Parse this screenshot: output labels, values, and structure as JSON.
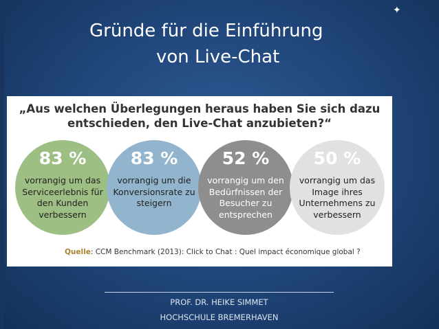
{
  "slide": {
    "title_line1": "Gründe für die Einführung",
    "title_line2": "von Live-Chat",
    "corner_mark": "✦"
  },
  "figure": {
    "question_line1": "„Aus welchen Überlegungen heraus haben Sie sich dazu",
    "question_line2": "entschieden, den Live-Chat anzubieten?“",
    "circles": [
      {
        "value": "83 %",
        "lines": [
          "vorrangig um das",
          "Serviceerlebnis für",
          "den Kunden",
          "verbessern"
        ],
        "color": "#9dbf84"
      },
      {
        "value": "83 %",
        "lines": [
          "vorrangig um die",
          "Konversionsrate zu",
          "steigern"
        ],
        "color": "#92b4cc"
      },
      {
        "value": "52 %",
        "lines": [
          "vorrangig um den",
          "Bedürfnissen der",
          "Besucher zu",
          "entsprechen"
        ],
        "color": "#8e8e8e"
      },
      {
        "value": "50 %",
        "lines": [
          "vorrangig um das",
          "Image ihres",
          "Unternehmens zu",
          "verbessern"
        ],
        "color": "#e1e1e1"
      }
    ],
    "source_label": "Quelle",
    "source_text": ": CCM Benchmark (2013): Click to Chat : Quel impact économique global ?"
  },
  "footer": {
    "line1": "PROF. DR. HEIKE SIMMET",
    "line2": "HOCHSCHULE BREMERHAVEN"
  }
}
